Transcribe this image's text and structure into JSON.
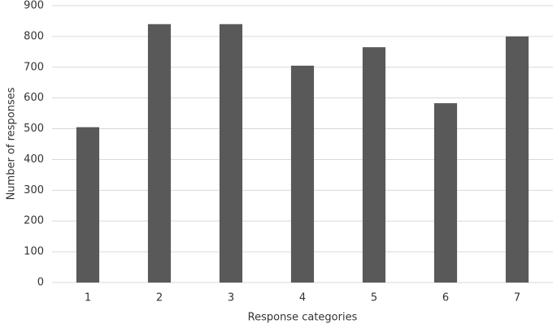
{
  "chart_data": {
    "type": "bar",
    "xlabel": "Response categories",
    "ylabel": "Number of responses",
    "categories": [
      "1",
      "2",
      "3",
      "4",
      "5",
      "6",
      "7"
    ],
    "values": [
      505,
      840,
      840,
      705,
      765,
      583,
      800
    ],
    "color": "#595959",
    "ylim": [
      0,
      900
    ],
    "yticks": [
      0,
      100,
      200,
      300,
      400,
      500,
      600,
      700,
      800,
      900
    ],
    "grid": true
  }
}
